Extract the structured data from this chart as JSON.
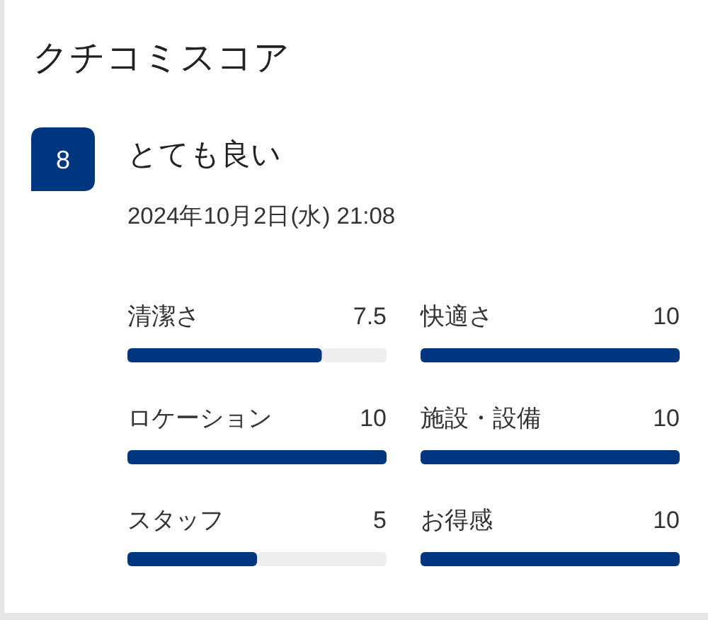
{
  "chart_data": [
    {
      "type": "other",
      "title": "クチコミスコア",
      "annotations": [
        "8",
        "とても良い",
        "2024年10月2日(水) 21:08"
      ]
    },
    {
      "type": "bar",
      "orientation": "horizontal",
      "categories": [
        "清潔さ",
        "ロケーション",
        "スタッフ"
      ],
      "values": [
        7.5,
        10,
        5
      ],
      "color": "#003580",
      "xlim": [
        0,
        10
      ],
      "data_labels": true
    },
    {
      "type": "bar",
      "orientation": "horizontal",
      "categories": [
        "快適さ",
        "施設・設備",
        "お得感"
      ],
      "values": [
        10,
        10,
        10
      ],
      "color": "#003580",
      "data_labels": true
    }
  ]
}
